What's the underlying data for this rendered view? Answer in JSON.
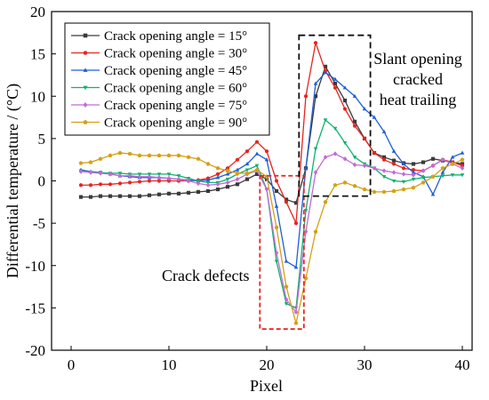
{
  "chart_data": {
    "type": "line",
    "xlabel": "Pixel",
    "ylabel": "Differential temperature / (°C)",
    "xlim": [
      -2,
      41
    ],
    "ylim": [
      -20,
      20
    ],
    "xticks": [
      0,
      10,
      20,
      30,
      40
    ],
    "yticks": [
      -20,
      -15,
      -10,
      -5,
      0,
      5,
      10,
      15,
      20
    ],
    "grid": false,
    "legend_position": "top-left",
    "series": [
      {
        "name": "Crack opening angle = 15°",
        "color": "#3a3a3a",
        "marker": "square",
        "x": [
          1,
          2,
          3,
          4,
          5,
          6,
          7,
          8,
          9,
          10,
          11,
          12,
          13,
          14,
          15,
          16,
          17,
          18,
          19,
          20,
          21,
          22,
          23,
          24,
          25,
          26,
          27,
          28,
          29,
          30,
          31,
          32,
          33,
          34,
          35,
          36,
          37,
          38,
          39,
          40
        ],
        "y": [
          -1.9,
          -1.9,
          -1.8,
          -1.8,
          -1.8,
          -1.8,
          -1.8,
          -1.7,
          -1.6,
          -1.5,
          -1.5,
          -1.4,
          -1.3,
          -1.2,
          -1.0,
          -0.7,
          -0.4,
          0.2,
          0.8,
          0.2,
          -1.2,
          -2.2,
          -2.6,
          1.5,
          10.0,
          13.5,
          11.5,
          9.5,
          7.0,
          5.0,
          3.3,
          2.8,
          2.4,
          2.1,
          2.0,
          2.2,
          2.6,
          2.4,
          2.2,
          2.0
        ]
      },
      {
        "name": "Crack opening angle = 30°",
        "color": "#e8241f",
        "marker": "circle",
        "x": [
          1,
          2,
          3,
          4,
          5,
          6,
          7,
          8,
          9,
          10,
          11,
          12,
          13,
          14,
          15,
          16,
          17,
          18,
          19,
          20,
          21,
          22,
          23,
          24,
          25,
          26,
          27,
          28,
          29,
          30,
          31,
          32,
          33,
          34,
          35,
          36,
          37,
          38,
          39,
          40
        ],
        "y": [
          -0.5,
          -0.5,
          -0.4,
          -0.4,
          -0.3,
          -0.2,
          -0.1,
          0.0,
          0.0,
          0.0,
          0.0,
          0.0,
          0.1,
          0.3,
          0.8,
          1.5,
          2.5,
          3.5,
          4.6,
          3.5,
          0.0,
          -2.5,
          -5.0,
          10.0,
          16.3,
          13.0,
          11.0,
          8.5,
          6.5,
          5.0,
          3.3,
          2.5,
          2.0,
          1.5,
          1.3,
          1.2,
          1.8,
          2.5,
          2.2,
          1.8
        ]
      },
      {
        "name": "Crack opening angle = 45°",
        "color": "#1f5fd6",
        "marker": "triangle-up",
        "x": [
          1,
          2,
          3,
          4,
          5,
          6,
          7,
          8,
          9,
          10,
          11,
          12,
          13,
          14,
          15,
          16,
          17,
          18,
          19,
          20,
          21,
          22,
          23,
          24,
          25,
          26,
          27,
          28,
          29,
          30,
          31,
          32,
          33,
          34,
          35,
          36,
          37,
          38,
          39,
          40
        ],
        "y": [
          1.3,
          1.1,
          1.0,
          0.8,
          0.6,
          0.5,
          0.4,
          0.4,
          0.4,
          0.3,
          0.2,
          0.1,
          0.0,
          0.1,
          0.4,
          0.8,
          1.3,
          2.0,
          3.2,
          2.5,
          -3.0,
          -9.5,
          -10.2,
          1.5,
          11.5,
          12.8,
          12.0,
          11.0,
          10.0,
          8.5,
          7.5,
          5.8,
          3.5,
          2.0,
          1.0,
          0.5,
          -1.6,
          1.0,
          2.8,
          3.3
        ]
      },
      {
        "name": "Crack opening angle = 60°",
        "color": "#12b070",
        "marker": "triangle-down",
        "x": [
          1,
          2,
          3,
          4,
          5,
          6,
          7,
          8,
          9,
          10,
          11,
          12,
          13,
          14,
          15,
          16,
          17,
          18,
          19,
          20,
          21,
          22,
          23,
          24,
          25,
          26,
          27,
          28,
          29,
          30,
          31,
          32,
          33,
          34,
          35,
          36,
          37,
          38,
          39,
          40
        ],
        "y": [
          1.2,
          1.0,
          1.0,
          0.9,
          0.9,
          0.8,
          0.8,
          0.8,
          0.8,
          0.8,
          0.6,
          0.3,
          0.0,
          -0.2,
          -0.2,
          0.2,
          0.8,
          1.3,
          1.8,
          -1.0,
          -9.5,
          -14.5,
          -15.0,
          -3.5,
          3.8,
          7.2,
          6.2,
          4.5,
          2.8,
          2.0,
          1.5,
          0.5,
          0.0,
          -0.1,
          0.2,
          0.4,
          0.5,
          0.6,
          0.7,
          0.7
        ]
      },
      {
        "name": "Crack opening angle = 75°",
        "color": "#c26bd6",
        "marker": "diamond",
        "x": [
          1,
          2,
          3,
          4,
          5,
          6,
          7,
          8,
          9,
          10,
          11,
          12,
          13,
          14,
          15,
          16,
          17,
          18,
          19,
          20,
          21,
          22,
          23,
          24,
          25,
          26,
          27,
          28,
          29,
          30,
          31,
          32,
          33,
          34,
          35,
          36,
          37,
          38,
          39,
          40
        ],
        "y": [
          1.1,
          1.0,
          0.9,
          0.8,
          0.6,
          0.6,
          0.5,
          0.5,
          0.4,
          0.3,
          0.2,
          0.0,
          -0.3,
          -0.5,
          -0.4,
          -0.2,
          0.2,
          0.8,
          1.2,
          -1.0,
          -8.5,
          -14.0,
          -15.5,
          -6.0,
          1.0,
          2.8,
          3.2,
          2.6,
          1.9,
          1.8,
          1.5,
          1.2,
          1.0,
          0.8,
          0.7,
          1.2,
          1.8,
          2.5,
          2.0,
          1.5
        ]
      },
      {
        "name": "Crack opening angle = 90°",
        "color": "#d4a017",
        "marker": "pentagon",
        "x": [
          1,
          2,
          3,
          4,
          5,
          6,
          7,
          8,
          9,
          10,
          11,
          12,
          13,
          14,
          15,
          16,
          17,
          18,
          19,
          20,
          21,
          22,
          23,
          24,
          25,
          26,
          27,
          28,
          29,
          30,
          31,
          32,
          33,
          34,
          35,
          36,
          37,
          38,
          39,
          40
        ],
        "y": [
          2.1,
          2.2,
          2.6,
          3.0,
          3.3,
          3.2,
          3.0,
          3.0,
          3.0,
          3.0,
          3.0,
          2.8,
          2.6,
          2.0,
          1.5,
          1.2,
          0.9,
          0.9,
          1.3,
          0.5,
          -5.5,
          -12.5,
          -16.8,
          -11.5,
          -6.0,
          -2.5,
          -0.5,
          -0.2,
          -0.6,
          -1.0,
          -1.3,
          -1.3,
          -1.2,
          -1.0,
          -0.8,
          -0.2,
          0.5,
          1.5,
          2.0,
          2.5
        ]
      }
    ],
    "annotations": {
      "crack_defects_label": "Crack defects",
      "slant_label_lines": [
        "Slant opening",
        "cracked",
        "heat trailing"
      ]
    }
  }
}
